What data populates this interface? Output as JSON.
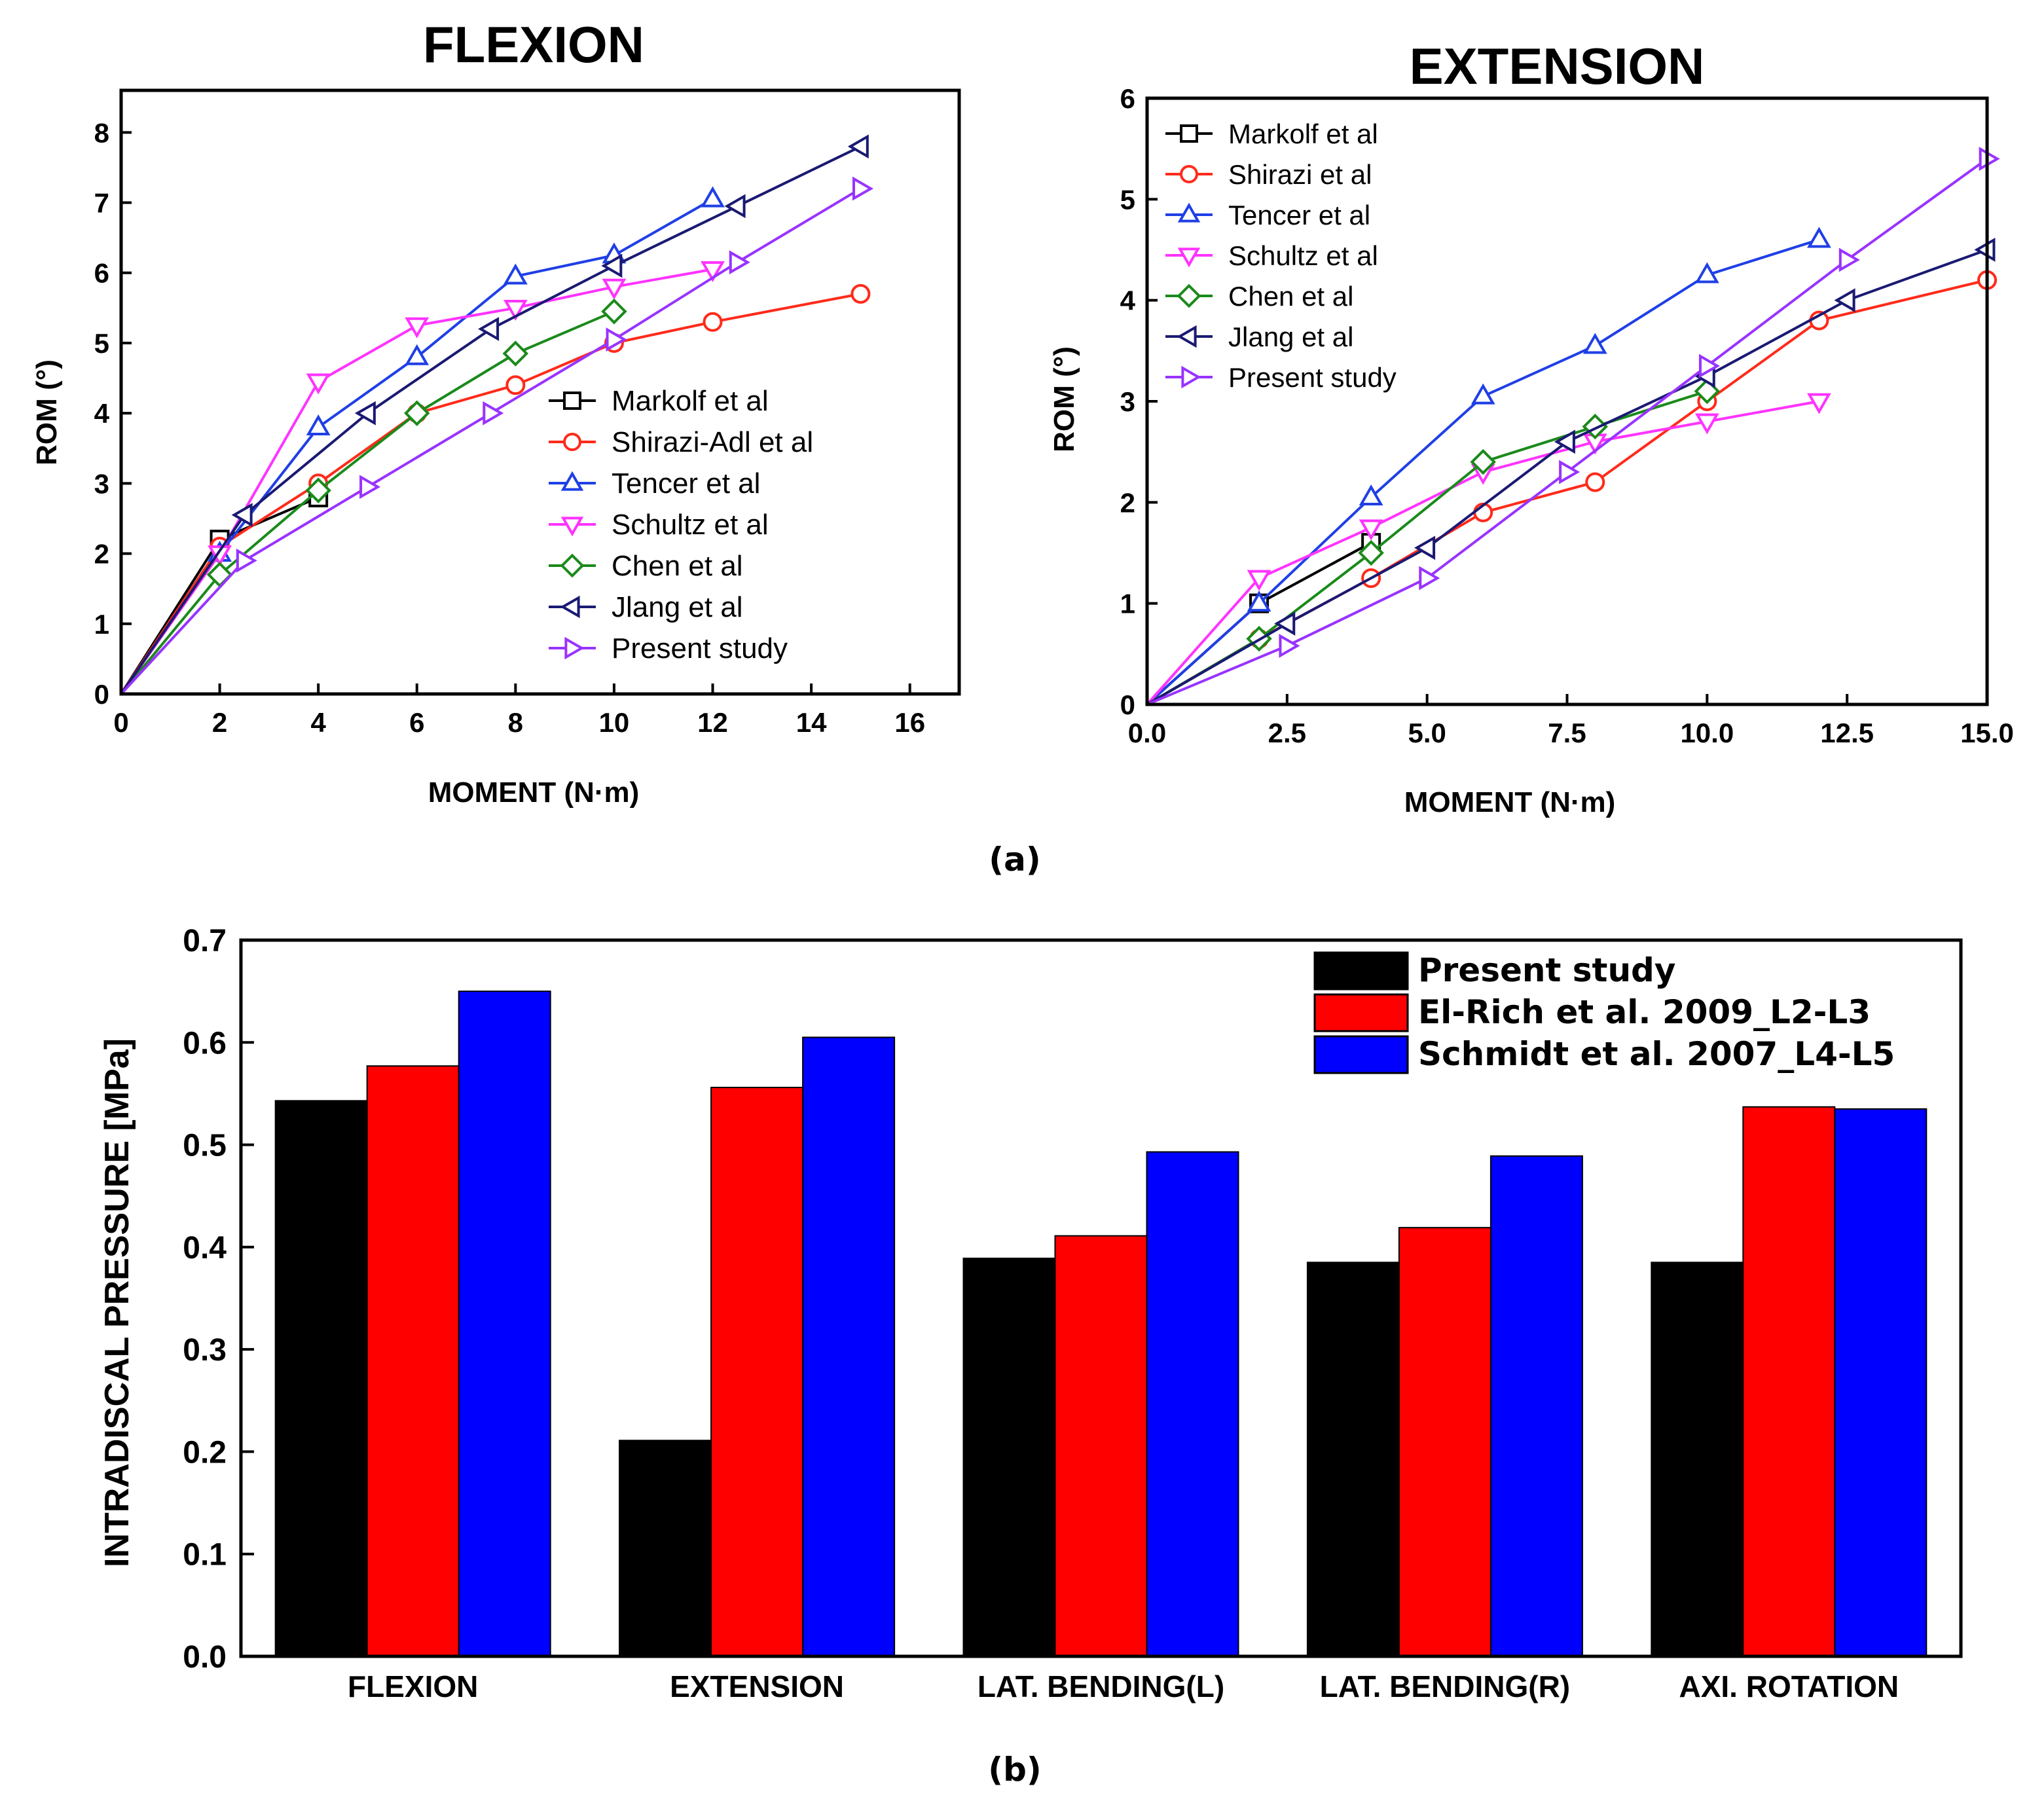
{
  "colors": {
    "markolf": "#000000",
    "shirazi": "#ff2a1a",
    "tencer": "#1f3fe6",
    "schultz": "#ff33ff",
    "chen": "#1a8a1a",
    "jiang": "#1a1a73",
    "present": "#9933ff",
    "bar_present": "#000000",
    "bar_elrich": "#ff0000",
    "bar_schmidt": "#0000ff"
  },
  "panels": {
    "a": "(a)",
    "b": "(b)"
  },
  "chart_data": [
    {
      "id": "flexion",
      "type": "line",
      "title": "FLEXION",
      "xlabel": "MOMENT (N·m)",
      "ylabel": "ROM (°)",
      "xlim": [
        0,
        17
      ],
      "ylim": [
        0,
        8.6
      ],
      "xticks": [
        "0",
        "2",
        "4",
        "6",
        "8",
        "10",
        "12",
        "14",
        "16"
      ],
      "yticks": [
        "0",
        "1",
        "2",
        "3",
        "4",
        "5",
        "6",
        "7",
        "8"
      ],
      "legend_position": "bottom-right",
      "series": [
        {
          "name": "Markolf et al",
          "color_key": "markolf",
          "marker": "square",
          "x": [
            0,
            2,
            4
          ],
          "y": [
            0,
            2.2,
            2.8
          ]
        },
        {
          "name": "Shirazi-Adl et al",
          "color_key": "shirazi",
          "marker": "circle",
          "x": [
            0,
            2,
            4,
            6,
            8,
            10,
            12,
            15
          ],
          "y": [
            0,
            2.1,
            3.0,
            4.0,
            4.4,
            5.0,
            5.3,
            5.7
          ]
        },
        {
          "name": "Tencer et al",
          "color_key": "tencer",
          "marker": "triangle-up",
          "x": [
            0,
            2,
            4,
            6,
            8,
            10,
            12
          ],
          "y": [
            0,
            2.0,
            3.8,
            4.8,
            5.95,
            6.25,
            7.05
          ]
        },
        {
          "name": "Schultz et al",
          "color_key": "schultz",
          "marker": "triangle-down",
          "x": [
            0,
            2,
            4,
            6,
            8,
            10,
            12
          ],
          "y": [
            0,
            2.0,
            4.45,
            5.25,
            5.5,
            5.8,
            6.05
          ]
        },
        {
          "name": "Chen et al",
          "color_key": "chen",
          "marker": "diamond",
          "x": [
            0,
            2,
            4,
            6,
            8,
            10
          ],
          "y": [
            0,
            1.7,
            2.9,
            4.0,
            4.85,
            5.45
          ]
        },
        {
          "name": "Jlang et al",
          "color_key": "jiang",
          "marker": "triangle-left",
          "x": [
            0,
            2.5,
            5,
            7.5,
            10,
            12.5,
            15
          ],
          "y": [
            0,
            2.55,
            4.0,
            5.2,
            6.1,
            6.95,
            7.8
          ]
        },
        {
          "name": "Present study",
          "color_key": "present",
          "marker": "triangle-right",
          "x": [
            0,
            2.5,
            5,
            7.5,
            10,
            12.5,
            15
          ],
          "y": [
            0,
            1.9,
            2.95,
            4.0,
            5.05,
            6.15,
            7.2
          ]
        }
      ]
    },
    {
      "id": "extension",
      "type": "line",
      "title": "EXTENSION",
      "xlabel": "MOMENT (N·m)",
      "ylabel": "ROM (°)",
      "xlim": [
        0,
        15
      ],
      "ylim": [
        0,
        6
      ],
      "xticks": [
        "0.0",
        "2.5",
        "5.0",
        "7.5",
        "10.0",
        "12.5",
        "15.0"
      ],
      "yticks": [
        "0",
        "1",
        "2",
        "3",
        "4",
        "5",
        "6"
      ],
      "legend_position": "top-left",
      "series": [
        {
          "name": "Markolf et al",
          "color_key": "markolf",
          "marker": "square",
          "x": [
            0,
            2,
            4
          ],
          "y": [
            0,
            1.0,
            1.6
          ]
        },
        {
          "name": "Shirazi et al",
          "color_key": "shirazi",
          "marker": "circle",
          "x": [
            0,
            2,
            4,
            6,
            8,
            10,
            12,
            15
          ],
          "y": [
            0,
            0.65,
            1.25,
            1.9,
            2.2,
            3.0,
            3.8,
            4.2
          ]
        },
        {
          "name": "Tencer et al",
          "color_key": "tencer",
          "marker": "triangle-up",
          "x": [
            0,
            2,
            4,
            6,
            8,
            10,
            12
          ],
          "y": [
            0,
            1.0,
            2.05,
            3.05,
            3.55,
            4.25,
            4.6
          ]
        },
        {
          "name": "Schultz et al",
          "color_key": "schultz",
          "marker": "triangle-down",
          "x": [
            0,
            2,
            4,
            6,
            8,
            10,
            12
          ],
          "y": [
            0,
            1.25,
            1.75,
            2.3,
            2.6,
            2.8,
            3.0
          ]
        },
        {
          "name": "Chen et al",
          "color_key": "chen",
          "marker": "diamond",
          "x": [
            0,
            2,
            4,
            6,
            8,
            10
          ],
          "y": [
            0,
            0.65,
            1.5,
            2.4,
            2.75,
            3.1
          ]
        },
        {
          "name": "Jlang et al",
          "color_key": "jiang",
          "marker": "triangle-left",
          "x": [
            0,
            2.5,
            5,
            7.5,
            10,
            12.5,
            15
          ],
          "y": [
            0,
            0.8,
            1.55,
            2.6,
            3.25,
            4.0,
            4.5
          ]
        },
        {
          "name": "Present study",
          "color_key": "present",
          "marker": "triangle-right",
          "x": [
            0,
            2.5,
            5,
            7.5,
            10,
            12.5,
            15
          ],
          "y": [
            0,
            0.58,
            1.25,
            2.3,
            3.35,
            4.4,
            5.4
          ]
        }
      ]
    },
    {
      "id": "pressure",
      "type": "bar",
      "title": "",
      "xlabel": "",
      "ylabel": "INTRADISCAL PRESSURE [MPa]",
      "ylim": [
        0,
        0.7
      ],
      "yticks": [
        "0.0",
        "0.1",
        "0.2",
        "0.3",
        "0.4",
        "0.5",
        "0.6",
        "0.7"
      ],
      "categories": [
        "FLEXION",
        "EXTENSION",
        "LAT. BENDING(L)",
        "LAT. BENDING(R)",
        "AXI. ROTATION"
      ],
      "legend_position": "top-right",
      "series": [
        {
          "name": "Present study",
          "color_key": "bar_present",
          "values": [
            0.543,
            0.211,
            0.389,
            0.385,
            0.385
          ]
        },
        {
          "name": "El-Rich et al. 2009_L2-L3",
          "color_key": "bar_elrich",
          "values": [
            0.577,
            0.556,
            0.411,
            0.419,
            0.537
          ]
        },
        {
          "name": "Schmidt et al. 2007_L4-L5",
          "color_key": "bar_schmidt",
          "values": [
            0.65,
            0.605,
            0.493,
            0.489,
            0.535
          ]
        }
      ]
    }
  ]
}
